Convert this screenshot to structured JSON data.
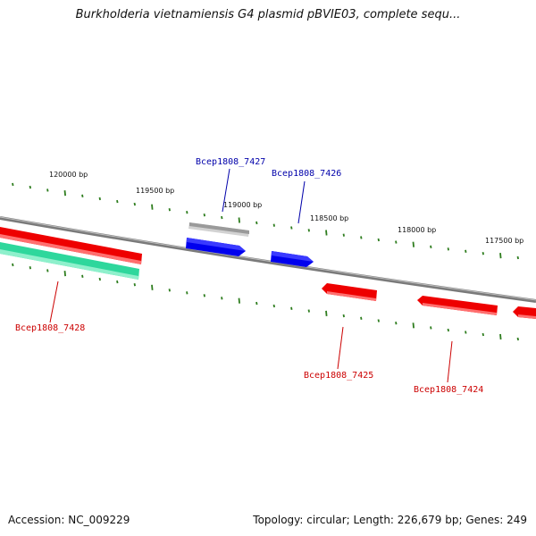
{
  "title": "Burkholderia vietnamiensis G4 plasmid pBVIE03, complete sequ...",
  "footer": {
    "accession": "Accession: NC_009229",
    "summary": "Topology: circular; Length: 226,679 bp; Genes: 249"
  },
  "colors": {
    "backbone": "#7a7a7a",
    "tick": "#2e7d1e",
    "forward_gene": "#0000ee",
    "reverse_gene": "#ee0000",
    "rna_gene": "#2ed79c",
    "gray_gene": "#b4b4b4",
    "forward_label": "#0000aa",
    "reverse_label": "#cc0000"
  },
  "ticks": [
    {
      "label": "120000 bp"
    },
    {
      "label": "119500 bp"
    },
    {
      "label": "119000 bp"
    },
    {
      "label": "118500 bp"
    },
    {
      "label": "118000 bp"
    },
    {
      "label": "117500 bp"
    }
  ],
  "genes": [
    {
      "name": "Bcep1808_7427",
      "strand": "forward"
    },
    {
      "name": "Bcep1808_7426",
      "strand": "forward"
    },
    {
      "name": "Bcep1808_7428",
      "strand": "reverse"
    },
    {
      "name": "Bcep1808_7425",
      "strand": "reverse"
    },
    {
      "name": "Bcep1808_7424",
      "strand": "reverse"
    }
  ]
}
